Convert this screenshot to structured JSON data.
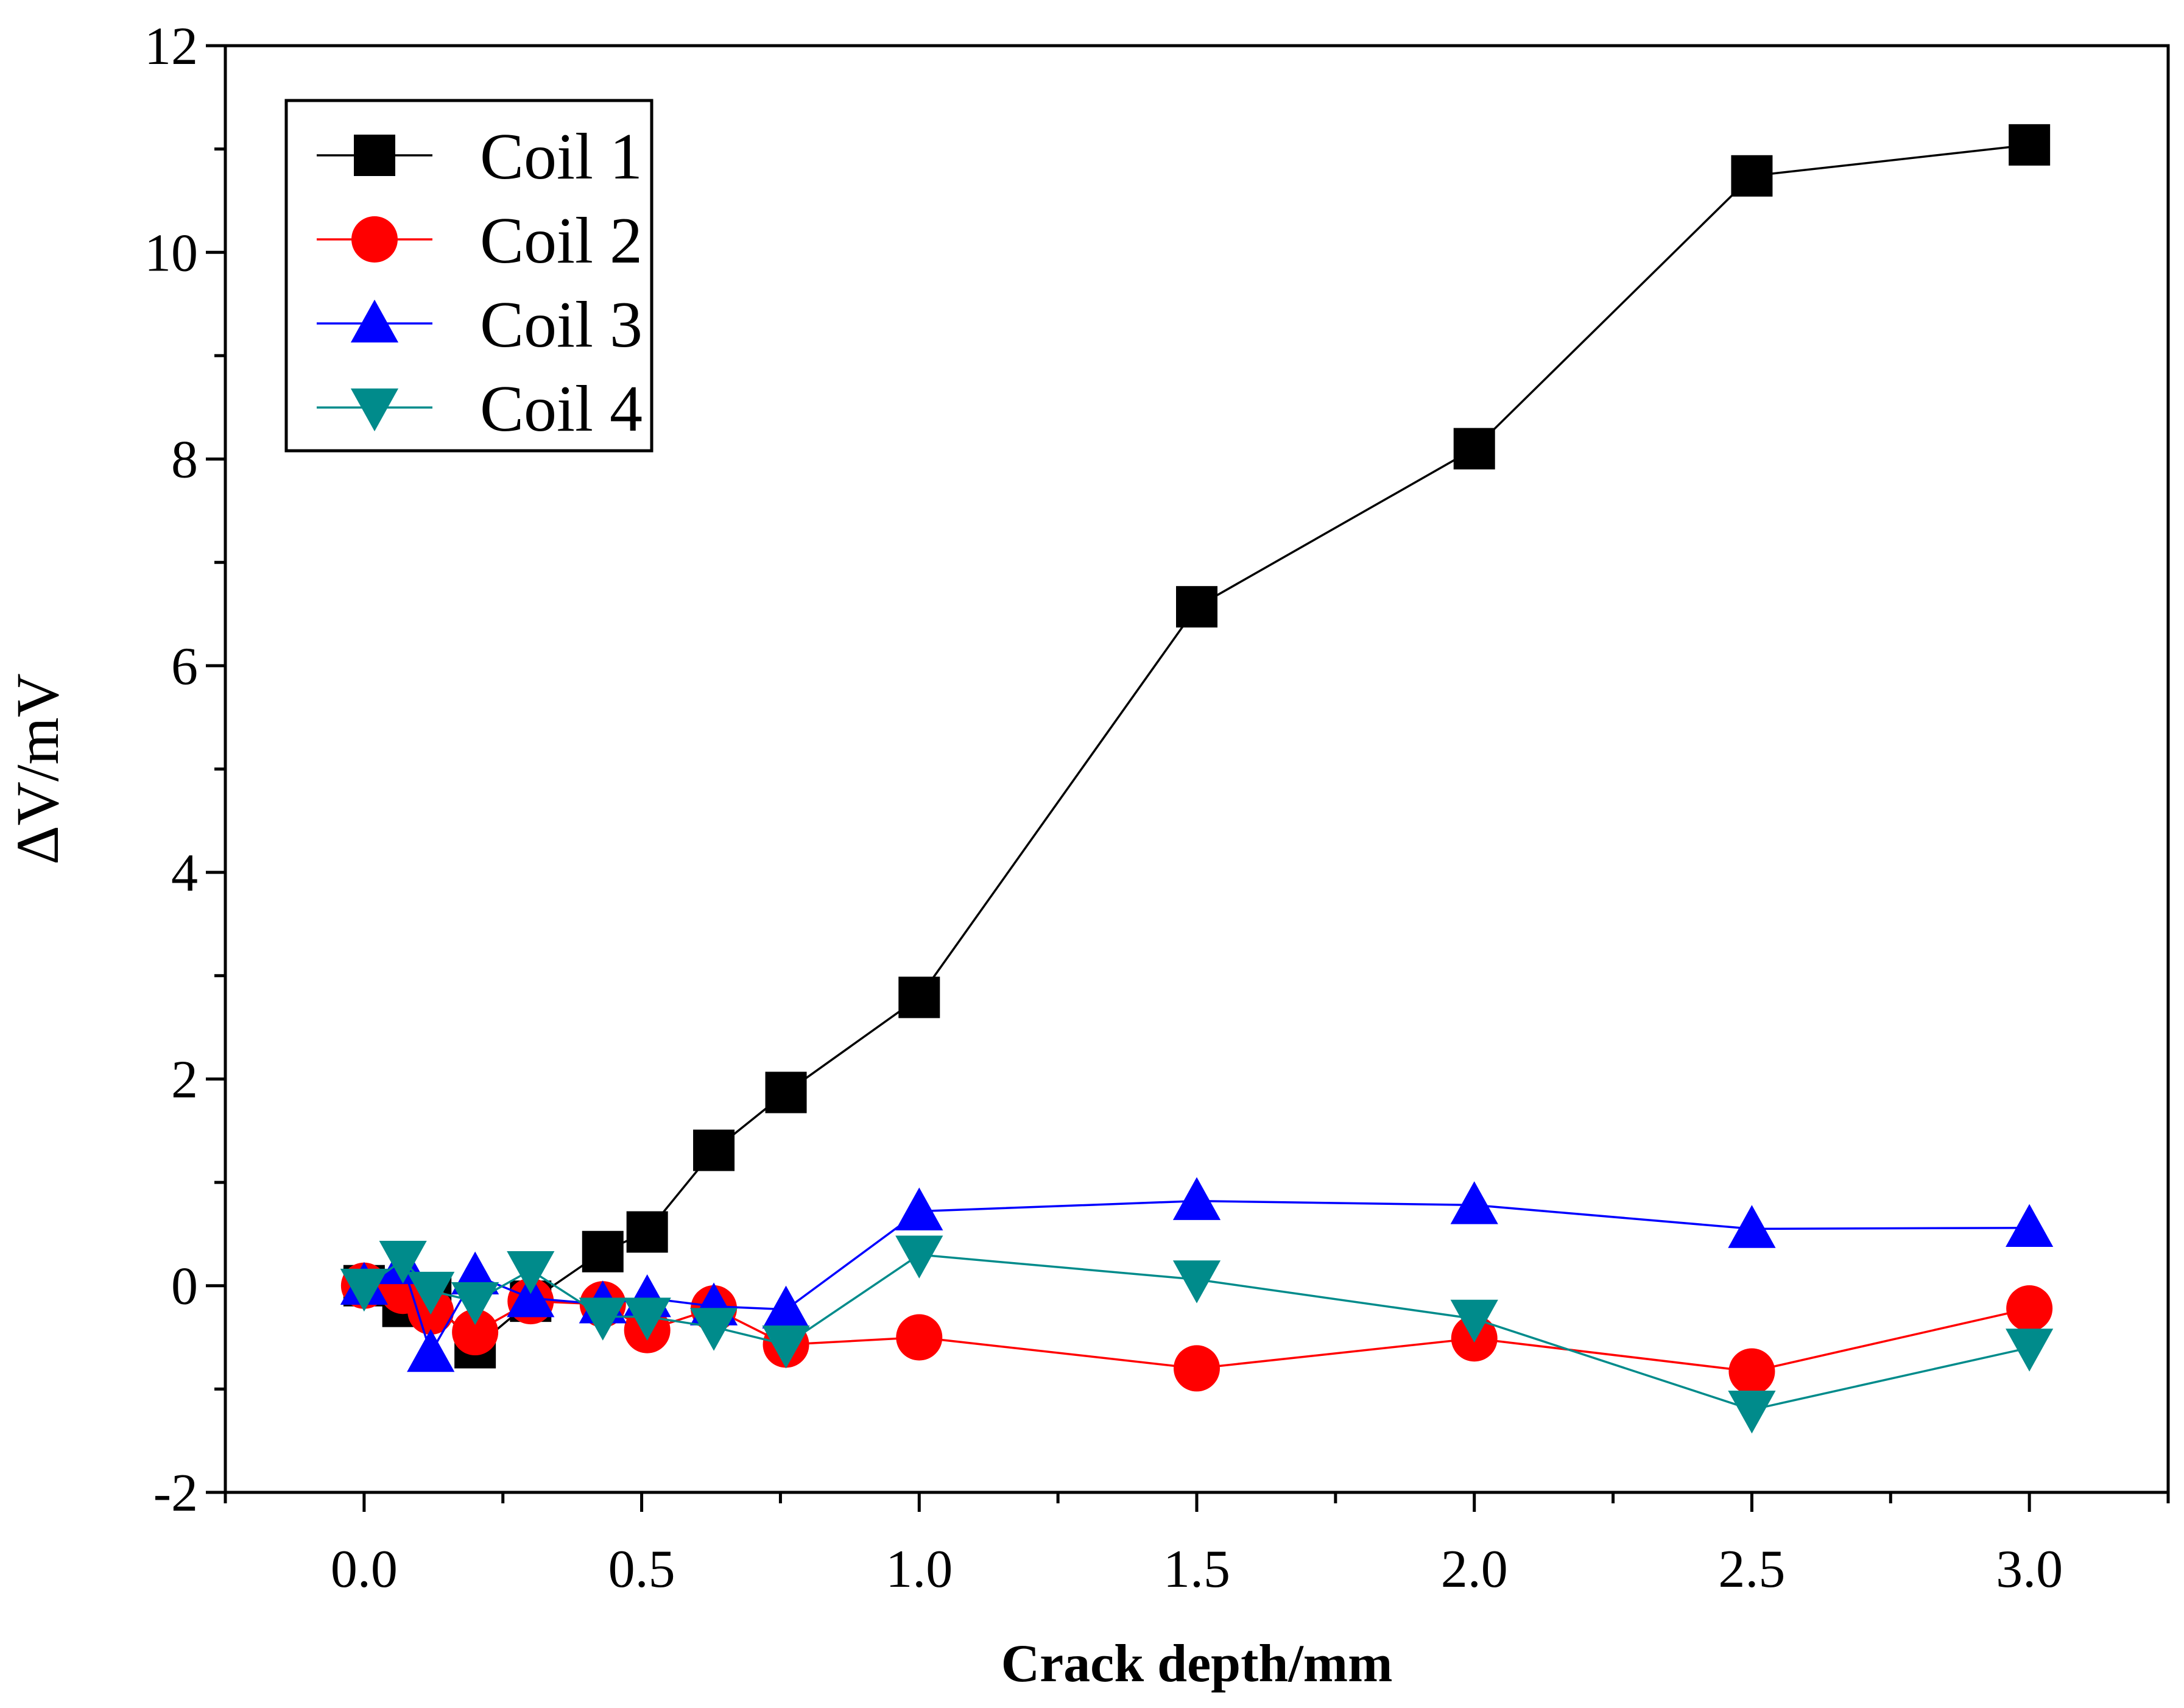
{
  "chart_data": {
    "type": "line",
    "title": "",
    "xlabel": "Crack depth/mm",
    "ylabel": "ΔV/mV",
    "xlim": [
      -0.25,
      3.25
    ],
    "ylim": [
      -2,
      12
    ],
    "x_ticks": [
      "0.0",
      "0.5",
      "1.0",
      "1.5",
      "2.0",
      "2.5",
      "3.0"
    ],
    "y_ticks": [
      "-2",
      "0",
      "2",
      "4",
      "6",
      "8",
      "10",
      "12"
    ],
    "legend_position": "top-left",
    "grid": false,
    "x": [
      0.0,
      0.07,
      0.12,
      0.2,
      0.3,
      0.43,
      0.51,
      0.63,
      0.76,
      1.0,
      1.5,
      2.0,
      2.5,
      3.0
    ],
    "series": [
      {
        "name": "Coil 1",
        "color": "#000000",
        "marker": "square",
        "values": [
          0.0,
          -0.2,
          -0.1,
          -0.6,
          -0.15,
          0.33,
          0.52,
          1.31,
          1.87,
          2.79,
          6.57,
          8.1,
          10.74,
          11.04
        ]
      },
      {
        "name": "Coil 2",
        "color": "#ff0000",
        "marker": "circle",
        "values": [
          0.0,
          -0.05,
          -0.25,
          -0.45,
          -0.15,
          -0.18,
          -0.43,
          -0.22,
          -0.57,
          -0.5,
          -0.8,
          -0.51,
          -0.83,
          -0.22
        ]
      },
      {
        "name": "Coil 3",
        "color": "#0000ff",
        "marker": "triangle-up",
        "values": [
          0.0,
          0.2,
          -0.65,
          0.1,
          -0.12,
          -0.18,
          -0.12,
          -0.2,
          -0.23,
          0.72,
          0.82,
          0.78,
          0.55,
          0.56
        ]
      },
      {
        "name": "Coil 4",
        "color": "#008b8b",
        "marker": "triangle-down",
        "values": [
          -0.02,
          0.25,
          -0.05,
          -0.15,
          0.15,
          -0.3,
          -0.3,
          -0.4,
          -0.57,
          0.3,
          0.06,
          -0.32,
          -1.2,
          -0.6
        ]
      }
    ]
  }
}
